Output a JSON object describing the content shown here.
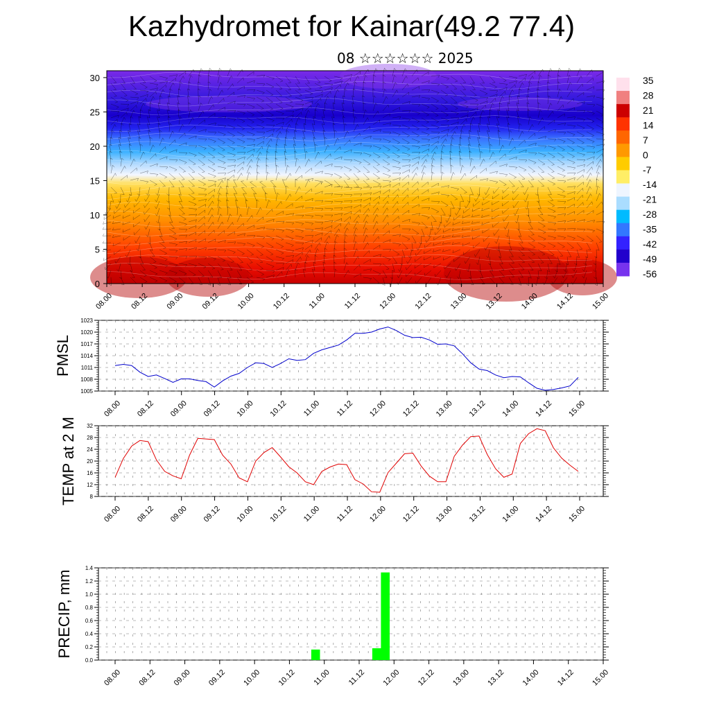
{
  "title": "Kazhydromet for Kainar(49.2 77.4)",
  "subtitle": "08 ☆☆☆☆☆☆ 2025",
  "colors": {
    "pressure_line": "#0000cc",
    "temp_line": "#e00000",
    "precip_bar": "#00ff00"
  },
  "chart_data": [
    {
      "type": "heatmap",
      "name": "vertical-section",
      "x_ticks": [
        "08.00",
        "08.12",
        "09.00",
        "09.12",
        "10.00",
        "10.12",
        "11.00",
        "11.12",
        "12.00",
        "12.12",
        "13.00",
        "13.12",
        "14.00",
        "14.12",
        "15.00"
      ],
      "y_ticks": [
        0,
        5,
        10,
        15,
        20,
        25,
        30
      ],
      "ylim": [
        0,
        31
      ],
      "colorbar_labels": [
        "35",
        "28",
        "21",
        "14",
        "7",
        "0",
        "-7",
        "-14",
        "-21",
        "-28",
        "-35",
        "-42",
        "-49",
        "-56"
      ],
      "colorbar_colors": [
        "#ffe0ec",
        "#f08080",
        "#cc0000",
        "#ff3300",
        "#ff6600",
        "#ff9900",
        "#ffcc00",
        "#ffee66",
        "#eef5ff",
        "#aaddff",
        "#00bbff",
        "#3377ff",
        "#3322ff",
        "#2200cc",
        "#7733ee"
      ]
    },
    {
      "type": "line",
      "name": "pressure",
      "ylabel": "PMSL",
      "ylim": [
        1005,
        1023
      ],
      "y_ticks": [
        "1005",
        "1008",
        "1011",
        "1014",
        "1017",
        "1020",
        "1023"
      ],
      "x_ticks": [
        "08.00",
        "08.12",
        "09.00",
        "09.12",
        "10.00",
        "10.12",
        "11.00",
        "11.12",
        "12.00",
        "12.12",
        "13.00",
        "13.12",
        "14.00",
        "14.12",
        "15.00"
      ],
      "values": [
        1011.5,
        1011.8,
        1011.5,
        1009.8,
        1008.7,
        1009.1,
        1008.2,
        1007.2,
        1008.1,
        1008.1,
        1007.7,
        1007.4,
        1006.0,
        1007.6,
        1008.8,
        1009.5,
        1011.0,
        1012.2,
        1012.0,
        1011.0,
        1012.0,
        1013.2,
        1012.8,
        1013.0,
        1014.6,
        1015.5,
        1016.1,
        1016.7,
        1018.0,
        1019.7,
        1019.7,
        1020.0,
        1020.8,
        1021.3,
        1020.4,
        1019.2,
        1018.6,
        1018.7,
        1018.0,
        1016.9,
        1017.0,
        1016.5,
        1014.5,
        1012.2,
        1010.6,
        1010.2,
        1009.1,
        1008.4,
        1008.7,
        1008.6,
        1007.1,
        1005.7,
        1005.2,
        1005.4,
        1005.8,
        1006.3,
        1008.5
      ]
    },
    {
      "type": "line",
      "name": "temperature",
      "ylabel": "TEMP at 2 M",
      "ylim": [
        8,
        32
      ],
      "y_ticks": [
        "8",
        "12",
        "16",
        "20",
        "24",
        "28",
        "32"
      ],
      "x_ticks": [
        "08.00",
        "08.12",
        "09.00",
        "09.12",
        "10.00",
        "10.12",
        "11.00",
        "11.12",
        "12.00",
        "12.12",
        "13.00",
        "13.12",
        "14.00",
        "14.12",
        "15.00"
      ],
      "values": [
        14.5,
        20.9,
        25.1,
        27.0,
        26.6,
        20.4,
        16.5,
        15.0,
        14.0,
        22.0,
        27.7,
        27.5,
        27.3,
        22.0,
        19.0,
        14.3,
        13.0,
        20.0,
        22.9,
        24.6,
        21.4,
        18.1,
        16.0,
        13.0,
        12.0,
        16.5,
        18.0,
        19.0,
        18.8,
        13.7,
        12.2,
        9.6,
        9.4,
        16.1,
        19.3,
        22.5,
        22.7,
        18.3,
        14.9,
        13.0,
        13.0,
        21.6,
        25.4,
        28.3,
        28.5,
        22.2,
        17.4,
        14.5,
        15.6,
        26.0,
        29.3,
        31.0,
        30.3,
        24.5,
        21.0,
        18.6,
        16.5
      ]
    },
    {
      "type": "bar",
      "name": "precipitation",
      "ylabel": "PRECIP, mm",
      "ylim": [
        0,
        1.4
      ],
      "y_ticks": [
        "0.0",
        "0.2",
        "0.4",
        "0.6",
        "0.8",
        "1.0",
        "1.2",
        "1.4"
      ],
      "x_ticks": [
        "08.00",
        "08.12",
        "09.00",
        "09.12",
        "10.00",
        "10.12",
        "11.00",
        "11.12",
        "12.00",
        "12.12",
        "13.00",
        "13.12",
        "14.00",
        "14.12",
        "15.00"
      ],
      "values": [
        0,
        0,
        0,
        0,
        0,
        0,
        0,
        0,
        0,
        0,
        0,
        0,
        0,
        0,
        0,
        0,
        0,
        0,
        0,
        0,
        0,
        0,
        0,
        0.16,
        0,
        0,
        0,
        0,
        0,
        0,
        0.18,
        1.33,
        0,
        0,
        0,
        0,
        0,
        0,
        0,
        0,
        0,
        0,
        0,
        0,
        0,
        0,
        0,
        0,
        0,
        0,
        0,
        0,
        0,
        0,
        0,
        0,
        0
      ]
    }
  ]
}
